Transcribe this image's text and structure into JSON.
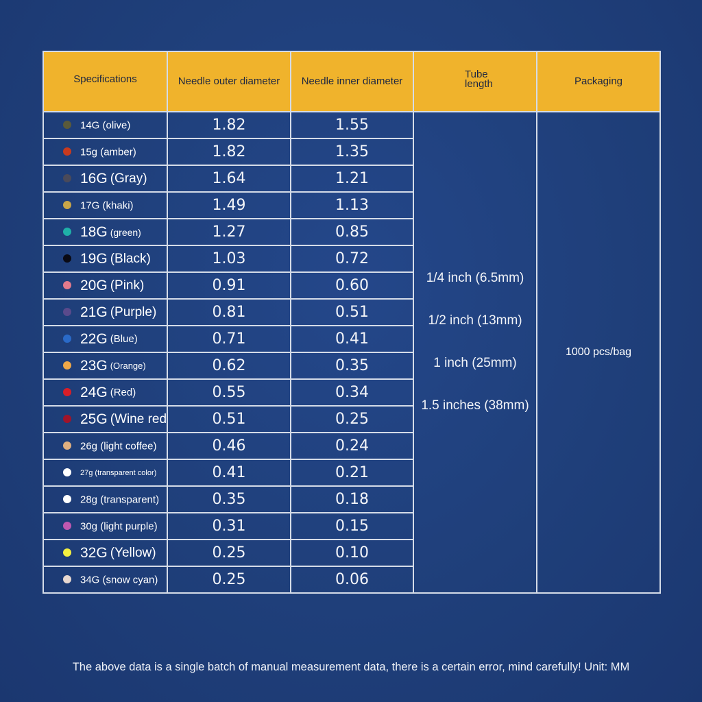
{
  "headers": {
    "specifications": "Specifications",
    "outer_diameter": "Needle outer diameter",
    "inner_diameter": "Needle inner diameter",
    "tube_length": "Tube length",
    "packaging": "Packaging"
  },
  "rows": [
    {
      "gauge": "14G",
      "color_name": "(olive)",
      "label": "14G (olive)",
      "outer": "1.82",
      "inner": "1.55",
      "dot_color": "#5a5a3a"
    },
    {
      "gauge": "15g",
      "color_name": "(amber)",
      "label": "15g (amber)",
      "outer": "1.82",
      "inner": "1.35",
      "dot_color": "#c83a1e"
    },
    {
      "gauge": "16G",
      "color_name": "(Gray)",
      "label": "16G (Gray)",
      "outer": "1.64",
      "inner": "1.21",
      "dot_color": "#4a4a5a"
    },
    {
      "gauge": "17G",
      "color_name": "(khaki)",
      "label": "17G (khaki)",
      "outer": "1.49",
      "inner": "1.13",
      "dot_color": "#c9a648"
    },
    {
      "gauge": "18G",
      "color_name": "(green)",
      "label": "18G (green)",
      "outer": "1.27",
      "inner": "0.85",
      "dot_color": "#1fb0a8"
    },
    {
      "gauge": "19G",
      "color_name": "(Black)",
      "label": "19G (Black)",
      "outer": "1.03",
      "inner": "0.72",
      "dot_color": "#0a0a14"
    },
    {
      "gauge": "20G",
      "color_name": "(Pink)",
      "label": "20G (Pink)",
      "outer": "0.91",
      "inner": "0.60",
      "dot_color": "#e27a8c"
    },
    {
      "gauge": "21G",
      "color_name": "(Purple)",
      "label": "21G (Purple)",
      "outer": "0.81",
      "inner": "0.51",
      "dot_color": "#5a4a8c"
    },
    {
      "gauge": "22G",
      "color_name": "(Blue)",
      "label": "22G (Blue)",
      "outer": "0.71",
      "inner": "0.41",
      "dot_color": "#2a6ac8"
    },
    {
      "gauge": "23G",
      "color_name": "(Orange)",
      "label": "23G (Orange)",
      "outer": "0.62",
      "inner": "0.35",
      "dot_color": "#f0a848"
    },
    {
      "gauge": "24G",
      "color_name": "(Red)",
      "label": "24G (Red)",
      "outer": "0.55",
      "inner": "0.34",
      "dot_color": "#d81e28"
    },
    {
      "gauge": "25G",
      "color_name": "(Wine red)",
      "label": "25G (Wine red)",
      "outer": "0.51",
      "inner": "0.25",
      "dot_color": "#a0142a"
    },
    {
      "gauge": "26g",
      "color_name": "(light coffee)",
      "label": "26g (light coffee)",
      "outer": "0.46",
      "inner": "0.24",
      "dot_color": "#e0b080"
    },
    {
      "gauge": "27g",
      "color_name": "(transparent color)",
      "label": "27g (transparent color)",
      "outer": "0.41",
      "inner": "0.21",
      "dot_color": "#ffffff"
    },
    {
      "gauge": "28g",
      "color_name": "(transparent)",
      "label": "28g (transparent)",
      "outer": "0.35",
      "inner": "0.18",
      "dot_color": "#ffffff"
    },
    {
      "gauge": "30g",
      "color_name": "(light purple)",
      "label": "30g (light purple)",
      "outer": "0.31",
      "inner": "0.15",
      "dot_color": "#c058b0"
    },
    {
      "gauge": "32G",
      "color_name": "(Yellow)",
      "label": "32G (Yellow)",
      "outer": "0.25",
      "inner": "0.10",
      "dot_color": "#f4f040"
    },
    {
      "gauge": "34G",
      "color_name": "(snow cyan)",
      "label": "34G (snow cyan)",
      "outer": "0.25",
      "inner": "0.06",
      "dot_color": "#e8d8d0"
    }
  ],
  "tube_lengths": [
    "1/4 inch (6.5mm)",
    "1/2 inch (13mm)",
    "1 inch (25mm)",
    "1.5 inches (38mm)"
  ],
  "packaging": "1000 pcs/bag",
  "footnote": "The above data is a single batch of manual measurement data, there is a certain error, mind carefully! Unit: MM",
  "colors": {
    "background": "#1f3f78",
    "header_background": "#f0b32c",
    "header_text": "#1e2740",
    "grid_line": "#d5dce8",
    "body_text": "#ffffff"
  }
}
